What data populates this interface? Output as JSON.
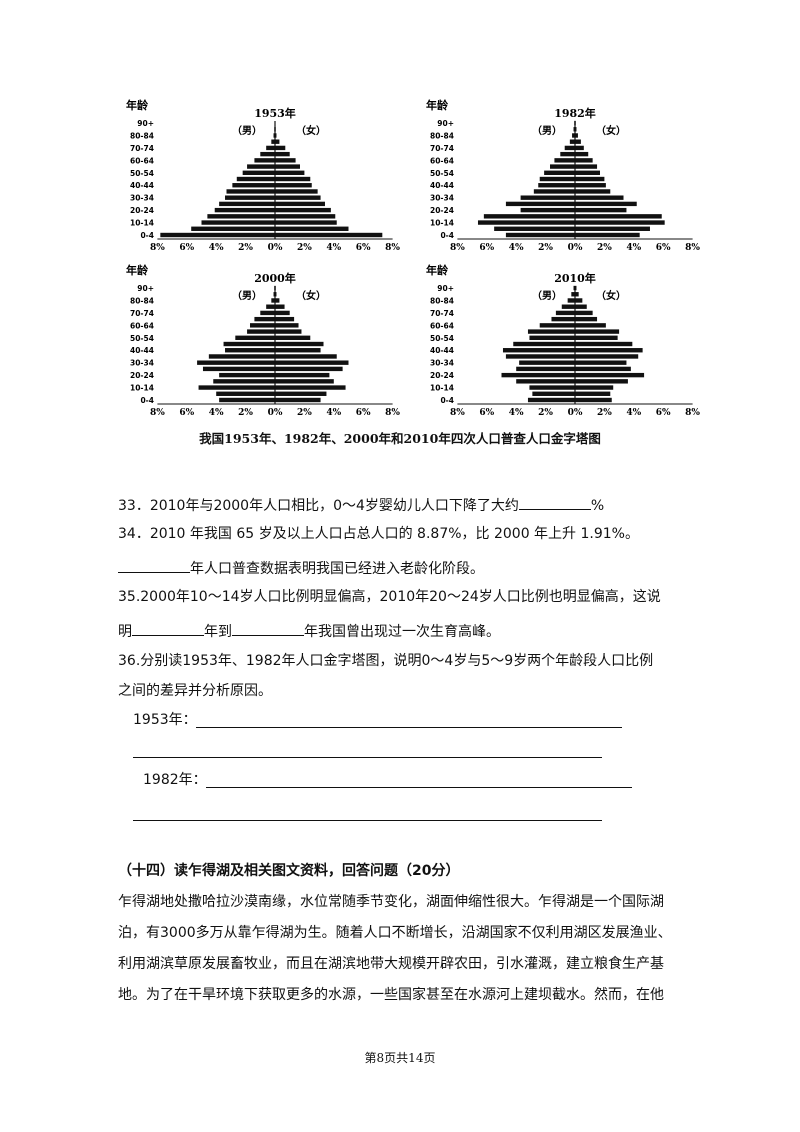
{
  "chart_data": [
    {
      "type": "bar",
      "title": "1953年",
      "ylabel": "年龄",
      "male_label": "（男）",
      "female_label": "（女）",
      "age_groups": [
        "0-4",
        "5-9",
        "10-14",
        "15-19",
        "20-24",
        "25-29",
        "30-34",
        "35-39",
        "40-44",
        "45-49",
        "50-54",
        "55-59",
        "60-64",
        "65-69",
        "70-74",
        "75-79",
        "80-84",
        "85-89",
        "90+"
      ],
      "age_tick_labels": [
        "0-4",
        "10-14",
        "20-24",
        "30-34",
        "40-44",
        "50-54",
        "60-64",
        "70-74",
        "80-84",
        "90+"
      ],
      "x_tick_labels": [
        "8%",
        "6%",
        "4%",
        "2%",
        "0%",
        "2%",
        "4%",
        "6%",
        "8%"
      ],
      "xlim": [
        -8,
        8
      ],
      "series": [
        {
          "name": "男",
          "values": [
            7.8,
            5.7,
            5.0,
            4.6,
            4.1,
            3.8,
            3.4,
            3.3,
            2.9,
            2.6,
            2.2,
            1.9,
            1.4,
            1.0,
            0.6,
            0.25,
            0.1,
            0.05,
            0
          ]
        },
        {
          "name": "女",
          "values": [
            7.3,
            5.0,
            4.2,
            4.1,
            3.8,
            3.4,
            3.1,
            2.9,
            2.5,
            2.4,
            2.0,
            1.7,
            1.4,
            1.0,
            0.7,
            0.3,
            0.1,
            0.05,
            0
          ]
        }
      ]
    },
    {
      "type": "bar",
      "title": "1982年",
      "ylabel": "年龄",
      "male_label": "（男）",
      "female_label": "（女）",
      "age_groups": [
        "0-4",
        "5-9",
        "10-14",
        "15-19",
        "20-24",
        "25-29",
        "30-34",
        "35-39",
        "40-44",
        "45-49",
        "50-54",
        "55-59",
        "60-64",
        "65-69",
        "70-74",
        "75-79",
        "80-84",
        "85-89",
        "90+"
      ],
      "age_tick_labels": [
        "0-4",
        "10-14",
        "20-24",
        "30-34",
        "40-44",
        "50-54",
        "60-64",
        "70-74",
        "80-84",
        "90+"
      ],
      "x_tick_labels": [
        "8%",
        "6%",
        "4%",
        "2%",
        "0%",
        "2%",
        "4%",
        "6%",
        "8%"
      ],
      "xlim": [
        -8,
        8
      ],
      "series": [
        {
          "name": "男",
          "values": [
            4.7,
            5.5,
            6.6,
            6.2,
            3.7,
            4.7,
            3.7,
            2.8,
            2.5,
            2.4,
            2.1,
            1.7,
            1.4,
            1.0,
            0.7,
            0.35,
            0.2,
            0.1,
            0.05
          ]
        },
        {
          "name": "女",
          "values": [
            4.4,
            5.1,
            6.1,
            5.9,
            3.5,
            4.2,
            3.3,
            2.4,
            2.1,
            2.0,
            1.7,
            1.5,
            1.2,
            0.9,
            0.6,
            0.4,
            0.2,
            0.1,
            0.05
          ]
        }
      ]
    },
    {
      "type": "bar",
      "title": "2000年",
      "ylabel": "年龄",
      "male_label": "（男）",
      "female_label": "（女）",
      "age_groups": [
        "0-4",
        "5-9",
        "10-14",
        "15-19",
        "20-24",
        "25-29",
        "30-34",
        "35-39",
        "40-44",
        "45-49",
        "50-54",
        "55-59",
        "60-64",
        "65-69",
        "70-74",
        "75-79",
        "80-84",
        "85-89",
        "90+"
      ],
      "age_tick_labels": [
        "0-4",
        "10-14",
        "20-24",
        "30-34",
        "40-44",
        "50-54",
        "60-64",
        "70-74",
        "80-84",
        "90+"
      ],
      "x_tick_labels": [
        "8%",
        "6%",
        "4%",
        "2%",
        "0%",
        "2%",
        "4%",
        "6%",
        "8%"
      ],
      "xlim": [
        -8,
        8
      ],
      "series": [
        {
          "name": "男",
          "values": [
            3.8,
            4.0,
            5.2,
            4.2,
            3.8,
            4.9,
            5.3,
            4.5,
            3.4,
            3.5,
            2.7,
            1.9,
            1.7,
            1.4,
            1.0,
            0.6,
            0.25,
            0.1,
            0.05
          ]
        },
        {
          "name": "女",
          "values": [
            3.1,
            3.5,
            4.8,
            4.0,
            3.7,
            4.6,
            5.0,
            4.2,
            3.1,
            3.3,
            2.4,
            1.8,
            1.6,
            1.3,
            1.0,
            0.65,
            0.3,
            0.1,
            0.05
          ]
        }
      ]
    },
    {
      "type": "bar",
      "title": "2010年",
      "ylabel": "年龄",
      "male_label": "（男）",
      "female_label": "（女）",
      "age_groups": [
        "0-4",
        "5-9",
        "10-14",
        "15-19",
        "20-24",
        "25-29",
        "30-34",
        "35-39",
        "40-44",
        "45-49",
        "50-54",
        "55-59",
        "60-64",
        "65-69",
        "70-74",
        "75-79",
        "80-84",
        "85-89",
        "90+"
      ],
      "age_tick_labels": [
        "0-4",
        "10-14",
        "20-24",
        "30-34",
        "40-44",
        "50-54",
        "60-64",
        "70-74",
        "80-84",
        "90+"
      ],
      "x_tick_labels": [
        "8%",
        "6%",
        "4%",
        "2%",
        "0%",
        "2%",
        "4%",
        "6%",
        "8%"
      ],
      "xlim": [
        -8,
        8
      ],
      "series": [
        {
          "name": "男",
          "values": [
            3.2,
            2.9,
            3.1,
            4.0,
            5.0,
            4.0,
            3.8,
            4.7,
            4.9,
            4.2,
            3.1,
            3.2,
            2.4,
            1.6,
            1.3,
            0.9,
            0.5,
            0.25,
            0.1
          ]
        },
        {
          "name": "女",
          "values": [
            2.5,
            2.4,
            2.6,
            3.6,
            4.7,
            3.8,
            3.5,
            4.3,
            4.6,
            3.9,
            2.9,
            3.0,
            2.1,
            1.5,
            1.2,
            0.8,
            0.5,
            0.25,
            0.1
          ]
        }
      ]
    }
  ],
  "caption": "我国1953年、1982年、2000年和2010年四次人口普查人口金字塔图",
  "questions": {
    "q33_a": "33．2010年与2000年人口相比，0～4岁婴幼儿人口下降了大约",
    "q33_b": "%",
    "q34_line1": "34．2010 年我国 65 岁及以上人口占总人口的 8.87%，比 2000 年上升 1.91%。",
    "q34_line2": "年人口普查数据表明我国已经进入老龄化阶段。",
    "q35_line1": "35.2000年10～14岁人口比例明显偏高，2010年20～24岁人口比例也明显偏高，这说",
    "q35_a": "明",
    "q35_b": "年到",
    "q35_c": "年我国曾出现过一次生育高峰。",
    "q36_line1": "36.分别读1953年、1982年人口金字塔图，说明0～4岁与5～9岁两个年龄段人口比例",
    "q36_line2": "之间的差异并分析原因。",
    "ans_1953": "1953年：",
    "ans_1982": "1982年："
  },
  "section": {
    "heading": "（十四）读乍得湖及相关图文资料，回答问题（20分）",
    "lines": [
      "乍得湖地处撒哈拉沙漠南缘，水位常随季节变化，湖面伸缩性很大。乍得湖是一个国际湖",
      "泊，有3000多万从靠乍得湖为生。随着人口不断增长，沿湖国家不仅利用湖区发展渔业、",
      "利用湖滨草原发展畜牧业，而且在湖滨地带大规模开辟农田，引水灌溉，建立粮食生产基",
      "地。为了在干旱环境下获取更多的水源，一些国家甚至在水源河上建坝截水。然而，在他"
    ]
  },
  "footer": "第8页共14页"
}
